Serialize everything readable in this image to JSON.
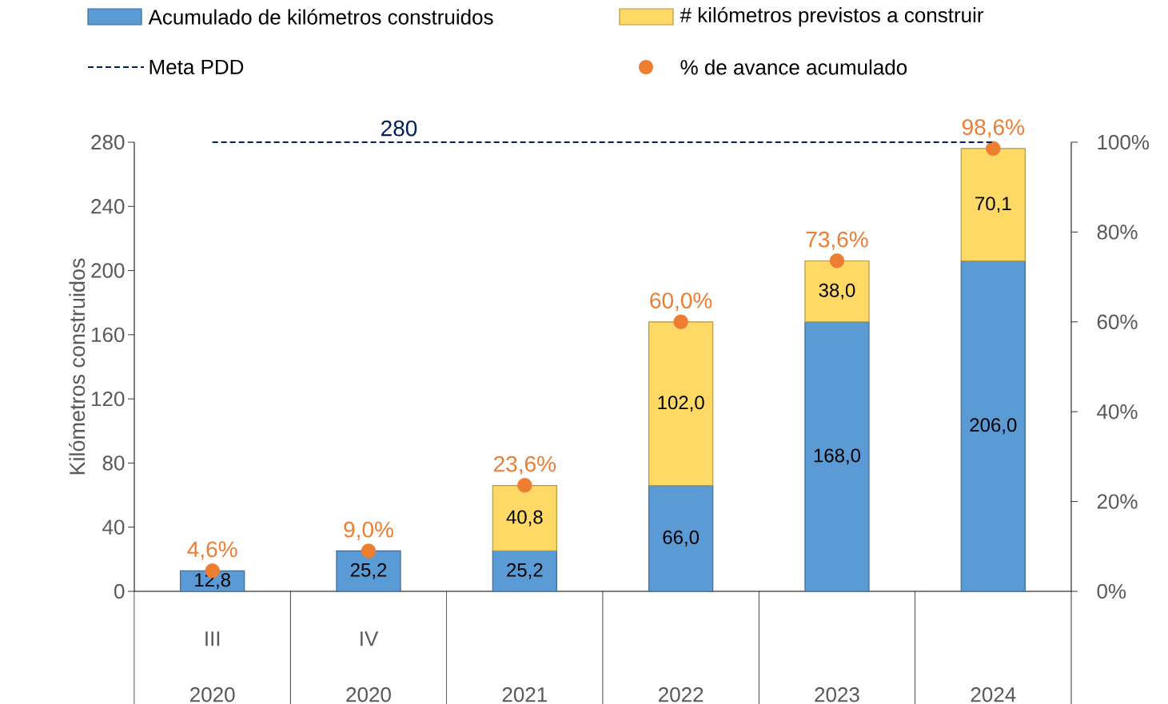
{
  "chart_data": {
    "type": "bar",
    "stacked": true,
    "legend": "top",
    "categories": [
      "III 2020",
      "IV 2020",
      "2021",
      "2022",
      "2023",
      "2024"
    ],
    "ylabel": "Kilómetros construidos",
    "ylim": [
      0,
      280
    ],
    "yticks": [
      0,
      40,
      80,
      120,
      160,
      200,
      240,
      280
    ],
    "y2lim": [
      0,
      100
    ],
    "y2ticks": [
      {
        "value": 0,
        "label": "0%"
      },
      {
        "value": 20,
        "label": "20%"
      },
      {
        "value": 40,
        "label": "40%"
      },
      {
        "value": 60,
        "label": "60%"
      },
      {
        "value": 80,
        "label": "80%"
      },
      {
        "value": 100,
        "label": "100%"
      }
    ],
    "series": [
      {
        "name": "Acumulado de kilómetros construidos",
        "color": "#5b9bd5",
        "values": [
          12.8,
          25.2,
          25.2,
          66.0,
          168.0,
          206.0
        ],
        "value_labels": [
          "12,8",
          "25,2",
          "25,2",
          "66,0",
          "168,0",
          "206,0"
        ]
      },
      {
        "name": "# kilómetros previstos a construir",
        "color": "#ffd966",
        "values": [
          null,
          null,
          40.8,
          102.0,
          38.0,
          70.1
        ],
        "value_labels": [
          null,
          null,
          "40,8",
          "102,0",
          "38,0",
          "70,1"
        ]
      },
      {
        "name": "Meta PDD",
        "type": "line",
        "color": "#002060",
        "line_style": "dashed",
        "values": [
          280,
          280,
          280,
          280,
          280,
          280
        ],
        "value_labels": [
          null,
          "280",
          null,
          null,
          null,
          null
        ]
      },
      {
        "name": "% de avance acumulado",
        "type": "scatter",
        "axis": "y2",
        "marker": "circle",
        "color": "#ed7d31",
        "values": [
          4.6,
          9.0,
          23.6,
          60.0,
          73.6,
          98.6
        ],
        "value_labels": [
          "4,6%",
          "9,0%",
          "23,6%",
          "60,0%",
          "73,6%",
          "98,6%"
        ]
      }
    ]
  }
}
